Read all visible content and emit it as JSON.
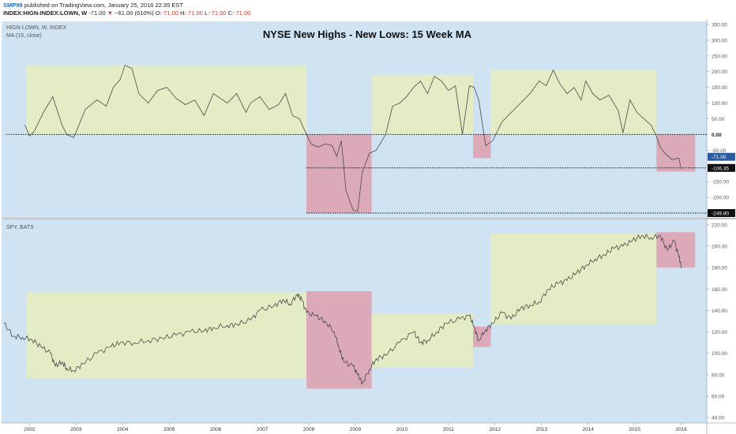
{
  "header": {
    "user": "SMP99",
    "published": "published on TradingView.com, January 25, 2016 22:35 EST",
    "symbol": "INDEX:HIGN-INDEX:LOWN, W",
    "last": "-71.00",
    "change": "−61.00 (610%)",
    "o_label": "O:",
    "o_value": "-71.00",
    "h_label": "H:",
    "h_value": "-71.00",
    "l_label": "L:",
    "l_value": "-71.00",
    "c_label": "C:",
    "c_value": "-71.00",
    "down_arrow": "▼"
  },
  "colors": {
    "background": "#cfe3f2",
    "green_zone": "#e3ecc4",
    "red_zone": "#dba9b8",
    "line": "#4a4a4a",
    "badge_blue": "#2c5aa0",
    "badge_black": "#111111"
  },
  "chart_data": [
    {
      "type": "line",
      "pane": "top",
      "title": "NYSE New Highs - New Lows: 15 Week MA",
      "labels": [
        "HIGN-LOWN, W, INDEX",
        "MA (15, close)"
      ],
      "x_range": [
        2001.45,
        2016.6
      ],
      "ylim": [
        -265,
        360
      ],
      "y_ticks": [
        "350.00",
        "300.00",
        "250.00",
        "200.00",
        "150.00",
        "100.00",
        "50.00",
        "0.00",
        "-50.00",
        "-100.00",
        "-150.00",
        "-200.00",
        "-250.00"
      ],
      "x": [
        2001.95,
        2002.05,
        2002.15,
        2002.35,
        2002.55,
        2002.75,
        2002.85,
        2003.0,
        2003.25,
        2003.5,
        2003.7,
        2003.85,
        2004.0,
        2004.1,
        2004.25,
        2004.4,
        2004.6,
        2004.8,
        2005.0,
        2005.2,
        2005.4,
        2005.6,
        2005.8,
        2006.0,
        2006.1,
        2006.3,
        2006.5,
        2006.7,
        2006.8,
        2007.0,
        2007.2,
        2007.4,
        2007.55,
        2007.7,
        2007.85,
        2008.0,
        2008.1,
        2008.25,
        2008.4,
        2008.55,
        2008.65,
        2008.75,
        2008.85,
        2009.0,
        2009.1,
        2009.2,
        2009.35,
        2009.5,
        2009.7,
        2009.85,
        2010.0,
        2010.15,
        2010.3,
        2010.45,
        2010.6,
        2010.75,
        2010.9,
        2011.05,
        2011.2,
        2011.35,
        2011.5,
        2011.6,
        2011.7,
        2011.85,
        2012.0,
        2012.2,
        2012.4,
        2012.6,
        2012.8,
        2013.0,
        2013.15,
        2013.3,
        2013.45,
        2013.6,
        2013.75,
        2013.9,
        2014.0,
        2014.15,
        2014.3,
        2014.5,
        2014.7,
        2014.8,
        2014.95,
        2015.1,
        2015.25,
        2015.4,
        2015.5,
        2015.6,
        2015.7,
        2015.85,
        2016.0,
        2016.05
      ],
      "y": [
        30,
        -5,
        10,
        70,
        120,
        30,
        0,
        -10,
        80,
        110,
        90,
        150,
        175,
        220,
        210,
        130,
        100,
        140,
        150,
        115,
        95,
        110,
        60,
        130,
        120,
        100,
        130,
        70,
        100,
        120,
        80,
        95,
        130,
        60,
        50,
        0,
        -30,
        -40,
        -30,
        -35,
        -70,
        -20,
        -180,
        -240,
        -245,
        -120,
        -60,
        -50,
        0,
        90,
        100,
        120,
        150,
        170,
        130,
        185,
        170,
        140,
        155,
        0,
        155,
        150,
        110,
        -35,
        -20,
        40,
        70,
        100,
        130,
        170,
        155,
        205,
        160,
        130,
        150,
        110,
        170,
        130,
        110,
        125,
        75,
        5,
        110,
        70,
        50,
        30,
        0,
        -40,
        -60,
        -80,
        -75,
        -110
      ],
      "zones": [
        {
          "color": "green",
          "x0": 2001.98,
          "x1": 2008.0,
          "y0": 0,
          "y1": 220
        },
        {
          "color": "red",
          "x0": 2008.0,
          "x1": 2009.4,
          "y0": -250,
          "y1": 0
        },
        {
          "color": "green",
          "x0": 2009.4,
          "x1": 2011.58,
          "y0": 0,
          "y1": 190
        },
        {
          "color": "red",
          "x0": 2011.58,
          "x1": 2011.96,
          "y0": -75,
          "y1": 0
        },
        {
          "color": "green",
          "x0": 2011.96,
          "x1": 2015.52,
          "y0": 0,
          "y1": 205
        },
        {
          "color": "red",
          "x0": 2015.52,
          "x1": 2016.35,
          "y0": -118,
          "y1": 0
        }
      ],
      "reference_lines": [
        {
          "y": 0,
          "x0": 2001.55,
          "x1": 2016.6,
          "label": "0.00",
          "badge": "plain"
        },
        {
          "y": -106.35,
          "x0": 2008.0,
          "x1": 2016.6,
          "label": "-106.35",
          "badge": "black"
        },
        {
          "y": -250,
          "x0": 2008.0,
          "x1": 2016.6,
          "label": "-249.80",
          "badge": "black"
        }
      ],
      "last_value": {
        "y": -71,
        "label": "-71.00",
        "badge": "blue"
      }
    },
    {
      "type": "line",
      "pane": "bottom",
      "labels": [
        "SPY, BATS"
      ],
      "x_range": [
        2001.45,
        2016.6
      ],
      "ylim": [
        35,
        225
      ],
      "y_ticks": [
        "220.00",
        "200.00",
        "180.00",
        "160.00",
        "140.00",
        "120.00",
        "100.00",
        "80.00",
        "60.00",
        "40.00"
      ],
      "x_ticks": [
        "2002",
        "2003",
        "2004",
        "2005",
        "2006",
        "2007",
        "2008",
        "2009",
        "2010",
        "2011",
        "2012",
        "2013",
        "2014",
        "2015",
        "2016"
      ],
      "x": [
        2001.5,
        2001.7,
        2001.9,
        2002.1,
        2002.3,
        2002.5,
        2002.6,
        2002.75,
        2002.85,
        2003.0,
        2003.2,
        2003.5,
        2003.8,
        2004.0,
        2004.3,
        2004.6,
        2004.9,
        2005.2,
        2005.5,
        2005.8,
        2006.0,
        2006.3,
        2006.5,
        2006.8,
        2007.0,
        2007.3,
        2007.5,
        2007.65,
        2007.8,
        2007.9,
        2008.0,
        2008.2,
        2008.4,
        2008.6,
        2008.7,
        2008.8,
        2009.0,
        2009.1,
        2009.2,
        2009.35,
        2009.5,
        2009.7,
        2010.0,
        2010.3,
        2010.45,
        2010.6,
        2010.8,
        2011.0,
        2011.3,
        2011.5,
        2011.6,
        2011.7,
        2011.85,
        2012.0,
        2012.2,
        2012.4,
        2012.6,
        2012.8,
        2013.0,
        2013.2,
        2013.4,
        2013.6,
        2013.8,
        2014.0,
        2014.2,
        2014.4,
        2014.6,
        2014.8,
        2015.0,
        2015.2,
        2015.4,
        2015.6,
        2015.75,
        2015.9,
        2016.0,
        2016.06
      ],
      "y": [
        128,
        116,
        115,
        113,
        106,
        100,
        88,
        92,
        86,
        84,
        90,
        100,
        106,
        110,
        110,
        112,
        114,
        117,
        120,
        121,
        124,
        126,
        127,
        131,
        140,
        144,
        150,
        146,
        155,
        150,
        138,
        135,
        130,
        120,
        105,
        92,
        88,
        80,
        72,
        85,
        95,
        98,
        110,
        120,
        110,
        112,
        120,
        128,
        132,
        135,
        125,
        112,
        122,
        128,
        138,
        132,
        142,
        145,
        148,
        160,
        165,
        168,
        175,
        182,
        188,
        192,
        198,
        200,
        205,
        210,
        208,
        210,
        196,
        205,
        190,
        180
      ]
    }
  ]
}
